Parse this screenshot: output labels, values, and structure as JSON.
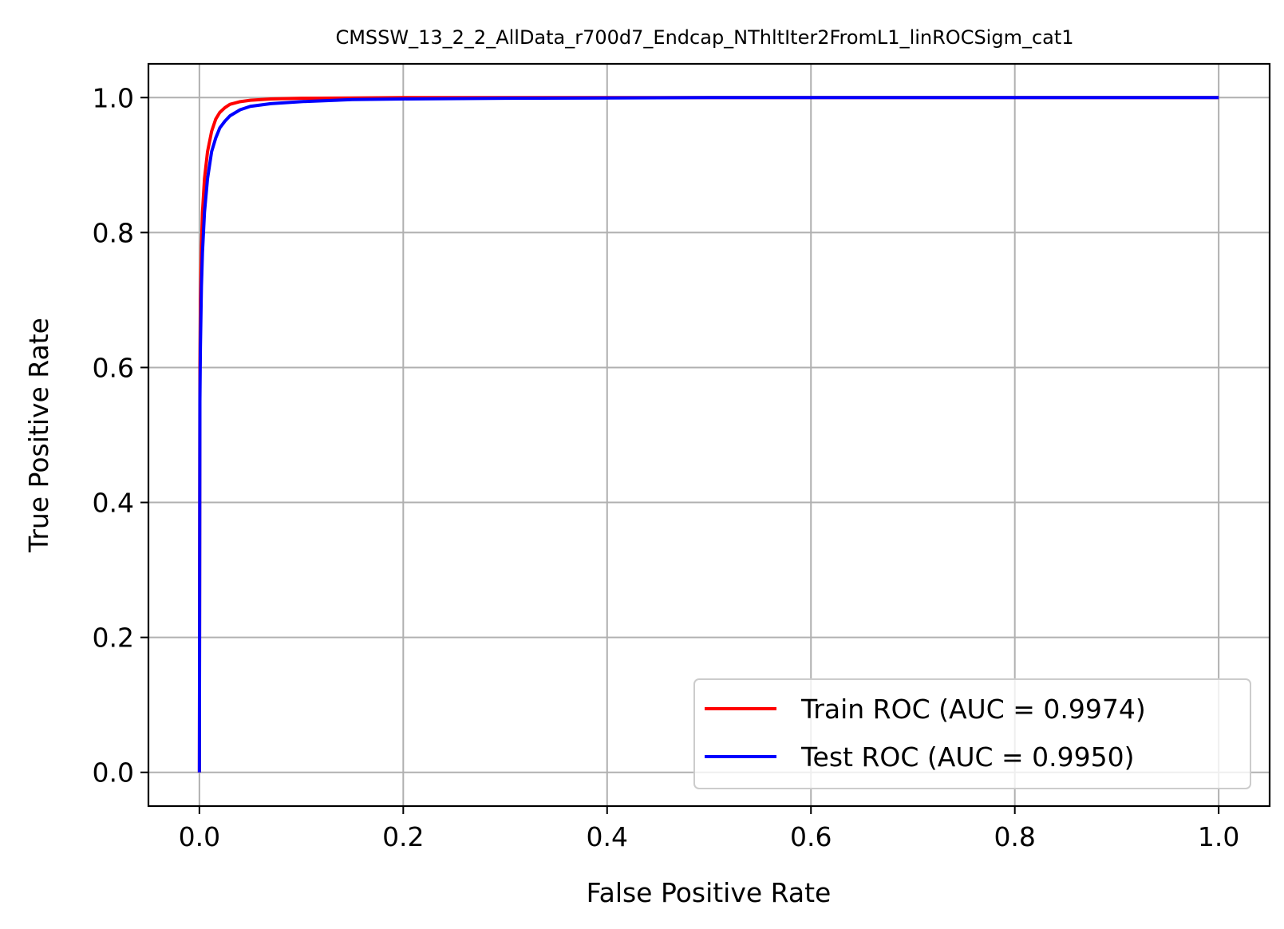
{
  "chart_data": {
    "type": "line",
    "title": "CMSSW_13_2_2_AllData_r700d7_Endcap_NThltIter2FromL1_linROCSigm_cat1",
    "xlabel": "False Positive Rate",
    "ylabel": "True Positive Rate",
    "xlim": [
      -0.05,
      1.05
    ],
    "ylim": [
      -0.05,
      1.05
    ],
    "xticks": [
      0.0,
      0.2,
      0.4,
      0.6,
      0.8,
      1.0
    ],
    "xtick_labels": [
      "0.0",
      "0.2",
      "0.4",
      "0.6",
      "0.8",
      "1.0"
    ],
    "yticks": [
      0.0,
      0.2,
      0.4,
      0.6,
      0.8,
      1.0
    ],
    "ytick_labels": [
      "0.0",
      "0.2",
      "0.4",
      "0.6",
      "0.8",
      "1.0"
    ],
    "grid": true,
    "legend_position": "lower-right",
    "series": [
      {
        "name": "Train ROC (AUC = 0.9974)",
        "color": "#ff0000",
        "x": [
          0.0,
          0.0005,
          0.001,
          0.002,
          0.003,
          0.005,
          0.008,
          0.012,
          0.016,
          0.02,
          0.025,
          0.03,
          0.04,
          0.05,
          0.07,
          0.1,
          0.15,
          0.2,
          0.3,
          0.5,
          0.7,
          1.0
        ],
        "y": [
          0.0,
          0.6,
          0.7,
          0.78,
          0.83,
          0.88,
          0.92,
          0.95,
          0.968,
          0.978,
          0.985,
          0.99,
          0.994,
          0.996,
          0.998,
          0.999,
          0.9995,
          1.0,
          1.0,
          1.0,
          1.0,
          1.0
        ]
      },
      {
        "name": "Test ROC (AUC = 0.9950)",
        "color": "#0000ff",
        "x": [
          0.0,
          0.0005,
          0.001,
          0.002,
          0.003,
          0.005,
          0.008,
          0.012,
          0.016,
          0.02,
          0.025,
          0.03,
          0.04,
          0.05,
          0.07,
          0.1,
          0.15,
          0.2,
          0.3,
          0.5,
          0.7,
          1.0
        ],
        "y": [
          0.0,
          0.55,
          0.63,
          0.72,
          0.77,
          0.83,
          0.88,
          0.92,
          0.94,
          0.955,
          0.965,
          0.973,
          0.982,
          0.987,
          0.991,
          0.994,
          0.997,
          0.998,
          0.999,
          1.0,
          1.0,
          1.0
        ]
      }
    ]
  }
}
